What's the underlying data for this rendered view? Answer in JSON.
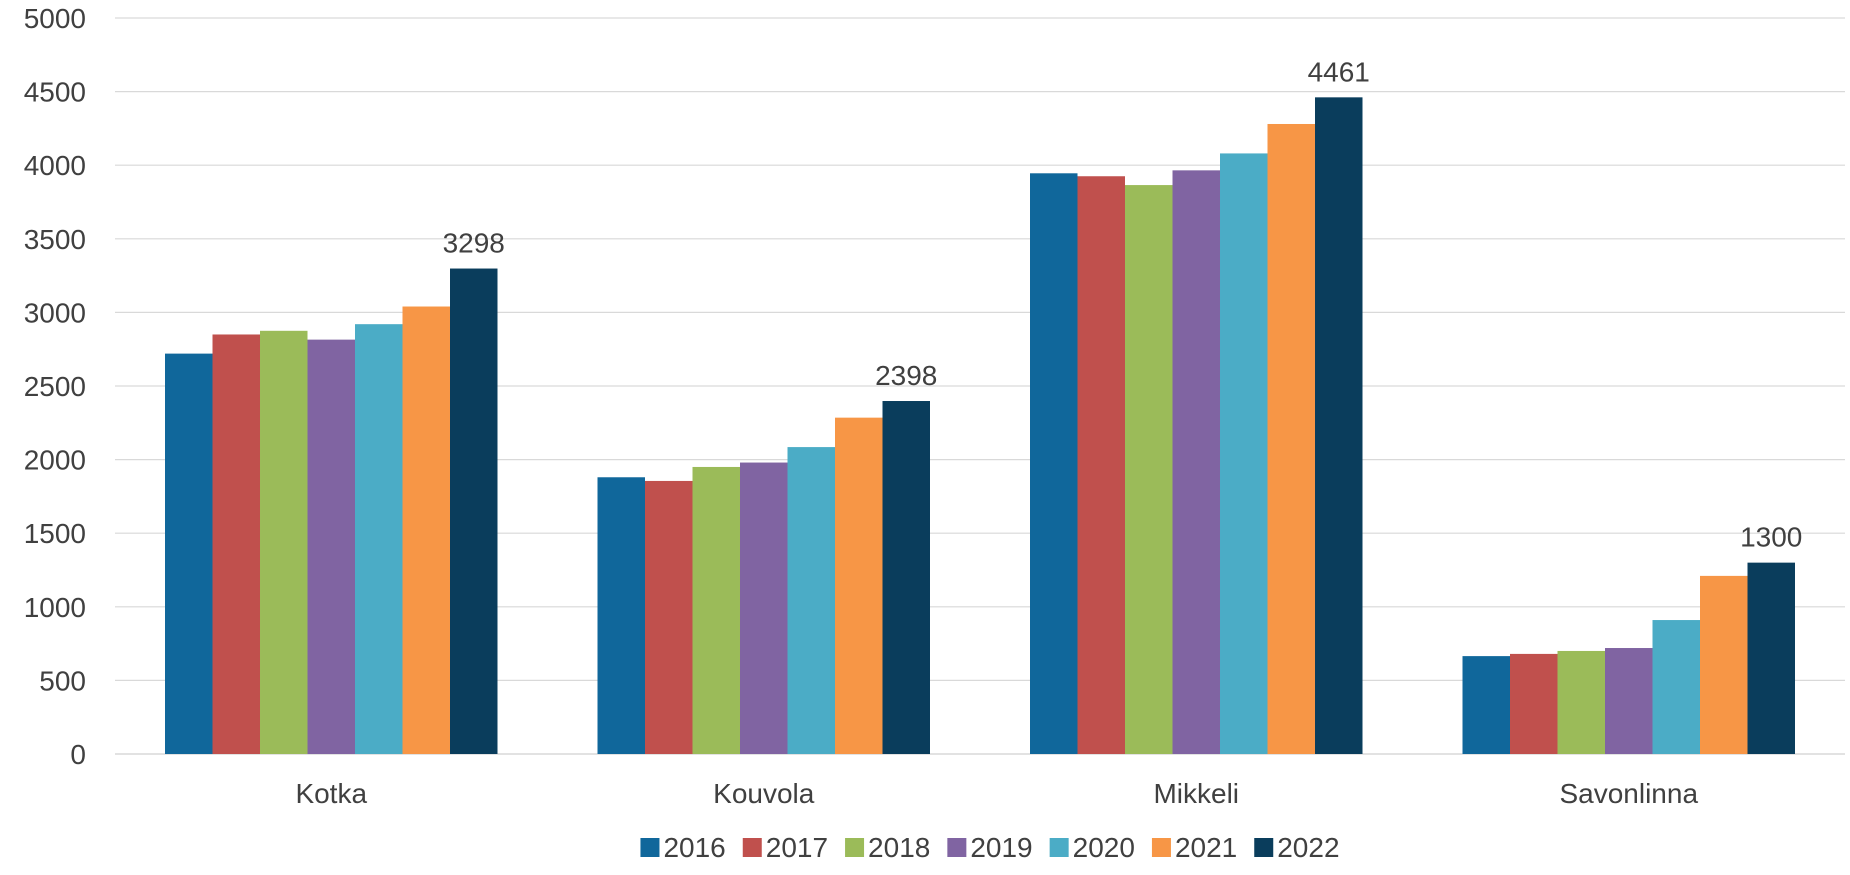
{
  "chart_data": {
    "type": "bar",
    "title": "",
    "xlabel": "",
    "ylabel": "",
    "categories": [
      "Kotka",
      "Kouvola",
      "Mikkeli",
      "Savonlinna"
    ],
    "ylim": [
      0,
      5000
    ],
    "yticks": [
      0,
      500,
      1000,
      1500,
      2000,
      2500,
      3000,
      3500,
      4000,
      4500,
      5000
    ],
    "grid": true,
    "legend_position": "bottom",
    "series": [
      {
        "name": "2016",
        "color": "#10679B",
        "values": [
          2720,
          1880,
          3945,
          665
        ]
      },
      {
        "name": "2017",
        "color": "#C0504D",
        "values": [
          2850,
          1855,
          3925,
          680
        ]
      },
      {
        "name": "2018",
        "color": "#9BBB59",
        "values": [
          2875,
          1950,
          3865,
          700
        ]
      },
      {
        "name": "2019",
        "color": "#8064A2",
        "values": [
          2815,
          1980,
          3965,
          720
        ]
      },
      {
        "name": "2020",
        "color": "#4BACC6",
        "values": [
          2920,
          2085,
          4080,
          910
        ]
      },
      {
        "name": "2021",
        "color": "#F79646",
        "values": [
          3040,
          2285,
          4280,
          1210
        ]
      },
      {
        "name": "2022",
        "color": "#0A3D5C",
        "values": [
          3298,
          2398,
          4461,
          1300
        ]
      }
    ],
    "data_labels": [
      {
        "series": "2022",
        "category": "Kotka",
        "text": "3298"
      },
      {
        "series": "2022",
        "category": "Kouvola",
        "text": "2398"
      },
      {
        "series": "2022",
        "category": "Mikkeli",
        "text": "4461"
      },
      {
        "series": "2022",
        "category": "Savonlinna",
        "text": "1300"
      }
    ]
  }
}
